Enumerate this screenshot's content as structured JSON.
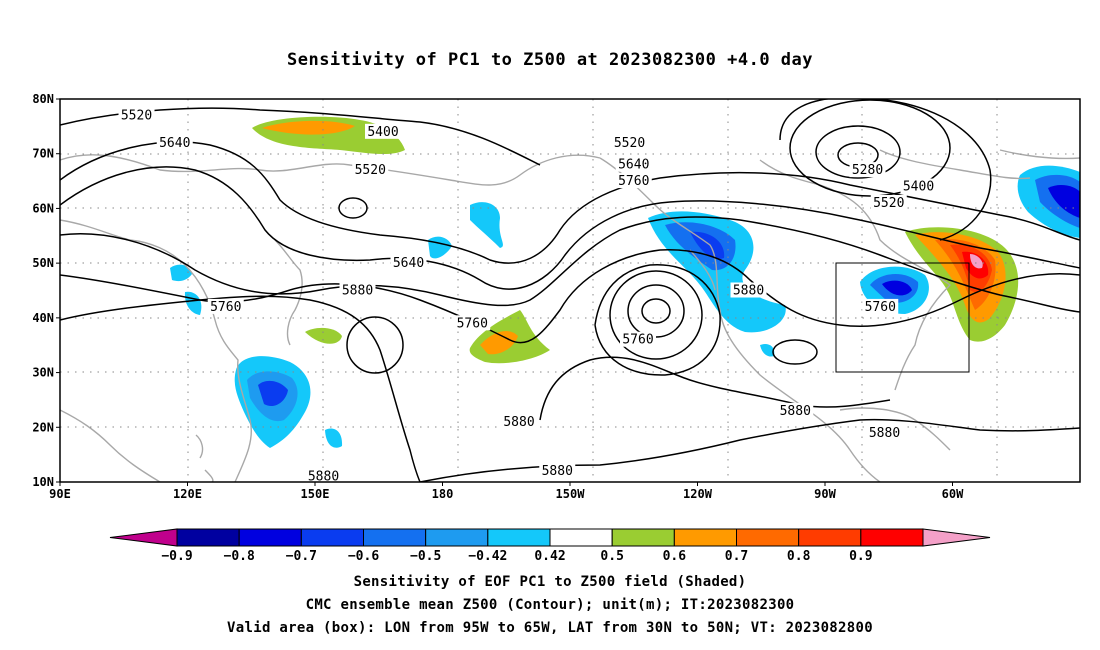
{
  "title": "Sensitivity of PC1 to Z500 at 2023082300 +4.0 day",
  "map": {
    "lon_range_label": [
      "90E",
      "180",
      "60W"
    ],
    "lat_ticks": [
      {
        "label": "80N",
        "lat": 80
      },
      {
        "label": "70N",
        "lat": 70
      },
      {
        "label": "60N",
        "lat": 60
      },
      {
        "label": "50N",
        "lat": 50
      },
      {
        "label": "40N",
        "lat": 40
      },
      {
        "label": "30N",
        "lat": 30
      },
      {
        "label": "20N",
        "lat": 20
      },
      {
        "label": "10N",
        "lat": 10
      }
    ],
    "lon_ticks": [
      {
        "label": "90E",
        "lon": 90
      },
      {
        "label": "120E",
        "lon": 120
      },
      {
        "label": "150E",
        "lon": 150
      },
      {
        "label": "180",
        "lon": 180
      },
      {
        "label": "150W",
        "lon": 210
      },
      {
        "label": "120W",
        "lon": 240
      },
      {
        "label": "90W",
        "lon": 270
      },
      {
        "label": "60W",
        "lon": 300
      }
    ],
    "contour_labels": [
      {
        "text": "5520",
        "lon": 108,
        "lat": 77
      },
      {
        "text": "5640",
        "lon": 117,
        "lat": 72
      },
      {
        "text": "5400",
        "lon": 166,
        "lat": 74
      },
      {
        "text": "5520",
        "lon": 163,
        "lat": 67
      },
      {
        "text": "5640",
        "lon": 172,
        "lat": 50
      },
      {
        "text": "5760",
        "lon": 129,
        "lat": 42
      },
      {
        "text": "5880",
        "lon": 160,
        "lat": 45
      },
      {
        "text": "5760",
        "lon": 187,
        "lat": 39
      },
      {
        "text": "5520",
        "lon": 224,
        "lat": 72
      },
      {
        "text": "5640",
        "lon": 225,
        "lat": 68
      },
      {
        "text": "5760",
        "lon": 225,
        "lat": 65
      },
      {
        "text": "5280",
        "lon": 280,
        "lat": 67
      },
      {
        "text": "5400",
        "lon": 292,
        "lat": 64
      },
      {
        "text": "5520",
        "lon": 285,
        "lat": 61
      },
      {
        "text": "5880",
        "lon": 252,
        "lat": 45
      },
      {
        "text": "5760",
        "lon": 283,
        "lat": 42
      },
      {
        "text": "5760",
        "lon": 226,
        "lat": 36
      },
      {
        "text": "5880",
        "lon": 263,
        "lat": 23
      },
      {
        "text": "5880",
        "lon": 198,
        "lat": 21
      },
      {
        "text": "5880",
        "lon": 284,
        "lat": 19
      },
      {
        "text": "5880",
        "lon": 207,
        "lat": 12
      },
      {
        "text": "5880",
        "lon": 152,
        "lat": 11
      }
    ],
    "valid_box": {
      "lon_min": 265,
      "lon_max": 295,
      "lat_min": 30,
      "lat_max": 50
    },
    "colors": {
      "coast": "#a8a8a8",
      "contour": "#000000",
      "grid": "#888888"
    }
  },
  "colorbar": {
    "labels": [
      "−0.9",
      "−0.8",
      "−0.7",
      "−0.6",
      "−0.5",
      "−0.42",
      "0.42",
      "0.5",
      "0.6",
      "0.7",
      "0.8",
      "0.9"
    ],
    "colors": [
      "#c0008c",
      "#0000a0",
      "#0000e0",
      "#0a3cf0",
      "#1470f0",
      "#1e9bf0",
      "#14c8fa",
      "#ffffff",
      "#9acd32",
      "#ff9a00",
      "#ff6a00",
      "#ff3c00",
      "#ff0000",
      "#f4a0c8"
    ]
  },
  "captions": {
    "line1": "Sensitivity of EOF PC1 to Z500 field (Shaded)",
    "line2": "CMC ensemble mean Z500 (Contour); unit(m); IT:2023082300",
    "line3": "Valid area (box): LON from 95W to 65W, LAT from 30N to 50N; VT: 2023082800"
  }
}
